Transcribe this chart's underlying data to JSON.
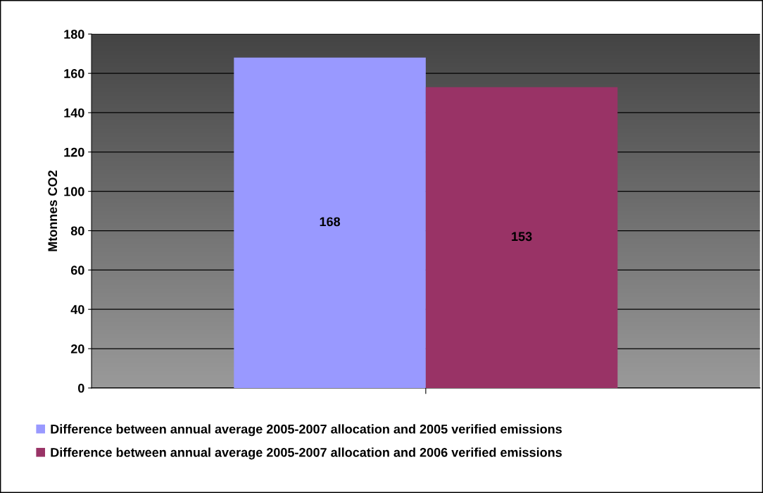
{
  "chart_data": {
    "type": "bar",
    "ylabel": "Mtonnes CO2",
    "categories": [
      null
    ],
    "series": [
      {
        "name": "Difference between annual average 2005-2007 allocation and 2005 verified emissions",
        "color": "#9999ff",
        "values": [
          168
        ]
      },
      {
        "name": "Difference between annual average 2005-2007 allocation and 2006 verified emissions",
        "color": "#993366",
        "values": [
          153
        ]
      }
    ],
    "ylim": [
      0,
      180
    ],
    "yticks": [
      0,
      20,
      40,
      60,
      80,
      100,
      120,
      140,
      160,
      180
    ],
    "grid": "y",
    "legend": "bottom",
    "data_labels": true
  }
}
